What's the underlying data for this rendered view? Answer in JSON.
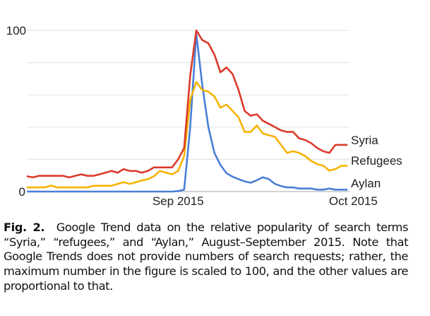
{
  "chart_data": {
    "type": "line",
    "title": "",
    "xlabel": "",
    "ylabel": "",
    "ylim": [
      0,
      100
    ],
    "y_ticks": [
      "0",
      "100"
    ],
    "y_tick_values": [
      0,
      100
    ],
    "gridlines": [
      0,
      20,
      40,
      60,
      80,
      100
    ],
    "grid": true,
    "x_ticks": [
      {
        "label": "Sep 2015",
        "date": "2015-09-01"
      },
      {
        "label": "Oct 2015",
        "date": "2015-10-01"
      }
    ],
    "legend_placement": "right, inline at line ends",
    "x": [
      "2015-08-07",
      "2015-08-08",
      "2015-08-09",
      "2015-08-10",
      "2015-08-11",
      "2015-08-12",
      "2015-08-13",
      "2015-08-14",
      "2015-08-15",
      "2015-08-16",
      "2015-08-17",
      "2015-08-18",
      "2015-08-19",
      "2015-08-20",
      "2015-08-21",
      "2015-08-22",
      "2015-08-23",
      "2015-08-24",
      "2015-08-25",
      "2015-08-26",
      "2015-08-27",
      "2015-08-28",
      "2015-08-29",
      "2015-08-30",
      "2015-08-31",
      "2015-09-01",
      "2015-09-02",
      "2015-09-03",
      "2015-09-04",
      "2015-09-05",
      "2015-09-06",
      "2015-09-07",
      "2015-09-08",
      "2015-09-09",
      "2015-09-10",
      "2015-09-11",
      "2015-09-12",
      "2015-09-13",
      "2015-09-14",
      "2015-09-15",
      "2015-09-16",
      "2015-09-17",
      "2015-09-18",
      "2015-09-19",
      "2015-09-20",
      "2015-09-21",
      "2015-09-22",
      "2015-09-23",
      "2015-09-24",
      "2015-09-25",
      "2015-09-26",
      "2015-09-27",
      "2015-09-28",
      "2015-09-29"
    ],
    "series": [
      {
        "name": "Syria",
        "color": "#db3b2b",
        "values": [
          9.5,
          8.8,
          9.8,
          9.8,
          9.8,
          9.8,
          9.8,
          8.8,
          9.8,
          10.7,
          9.8,
          9.8,
          10.7,
          11.7,
          12.8,
          11.7,
          13.9,
          12.8,
          12.8,
          11.7,
          12.8,
          15,
          15,
          15,
          15,
          20,
          27,
          72,
          100,
          94,
          92,
          85,
          74,
          77,
          73,
          63,
          50,
          47,
          48,
          44,
          42,
          40,
          38,
          37,
          37,
          33,
          32,
          30,
          27,
          25,
          24,
          29,
          29,
          29
        ]
      },
      {
        "name": "Refugees",
        "color": "#f4b400",
        "values": [
          2.6,
          2.6,
          2.6,
          2.6,
          3.8,
          2.6,
          2.6,
          2.6,
          2.6,
          2.6,
          2.6,
          3.6,
          3.6,
          3.6,
          3.6,
          4.8,
          5.8,
          4.8,
          5.8,
          6.9,
          7.7,
          9.5,
          12.8,
          11.7,
          10.7,
          12.8,
          22,
          57,
          68,
          63,
          62,
          59,
          52,
          54,
          50,
          46,
          37,
          37,
          41,
          36,
          35,
          34,
          29,
          24,
          25,
          24,
          22,
          19,
          17,
          16,
          13,
          14,
          16,
          16
        ]
      },
      {
        "name": "Aylan",
        "color": "#4a7fd6",
        "values": [
          0,
          0,
          0,
          0,
          0,
          0,
          0,
          0,
          0,
          0,
          0,
          0,
          0,
          0,
          0,
          0,
          0,
          0,
          0,
          0,
          0,
          0,
          0,
          0,
          0,
          0.3,
          1.2,
          40,
          98,
          66,
          40,
          24,
          16.5,
          11.4,
          9.2,
          7.7,
          6.3,
          5.5,
          7,
          8.9,
          7.7,
          4.8,
          3.4,
          2.6,
          2.6,
          1.9,
          1.9,
          1.9,
          1.2,
          1.2,
          1.9,
          1.2,
          1.2,
          1.2
        ]
      }
    ]
  },
  "caption": {
    "label": "Fig. 2.",
    "text": "Google Trend data on the relative popularity of search terms “Syria,” “refugees,” and “Aylan,” August–September 2015. Note that Google Trends does not provide numbers of search requests; rather, the maximum number in the figure is scaled to 100, and the other values are proportional to that."
  }
}
